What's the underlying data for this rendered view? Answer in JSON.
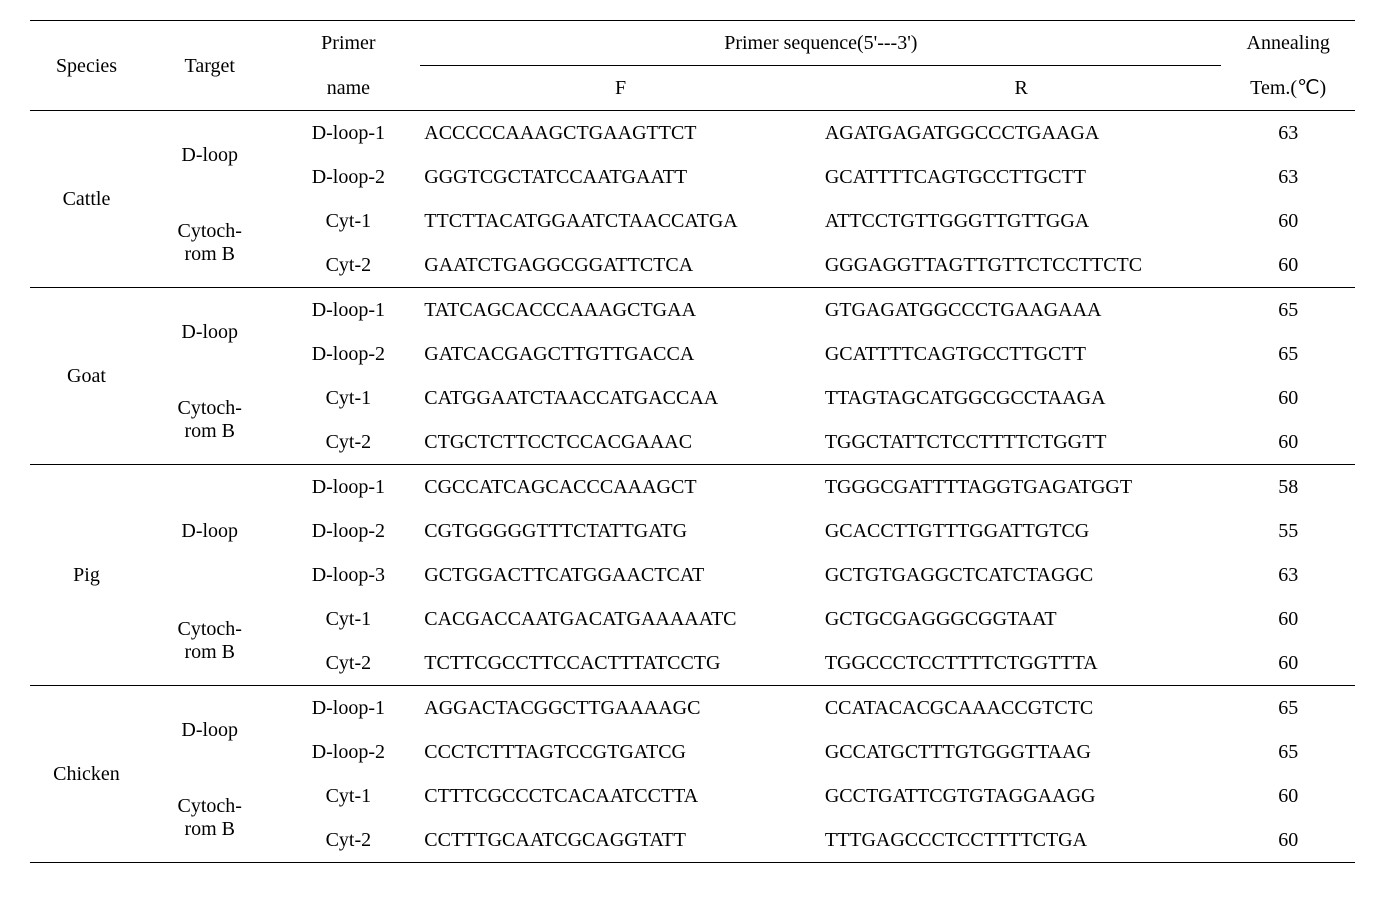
{
  "headers": {
    "species": "Species",
    "target": "Target",
    "primer_name_top": "Primer",
    "primer_name_bottom": "name",
    "sequence": "Primer  sequence(5'---3')",
    "f": "F",
    "r": "R",
    "annealing_top": "Annealing",
    "annealing_bottom": "Tem.(℃)"
  },
  "species": [
    {
      "name": "Cattle",
      "targets": [
        {
          "name": "D-loop",
          "rows": [
            {
              "primer": "D-loop-1",
              "f": "ACCCCCAAAGCTGAAGTTCT",
              "r": "AGATGAGATGGCCCTGAAGA",
              "temp": "63"
            },
            {
              "primer": "D-loop-2",
              "f": "GGGTCGCTATCCAATGAATT",
              "r": "GCATTTTCAGTGCCTTGCTT",
              "temp": "63"
            }
          ]
        },
        {
          "name": "Cytoch-\nrom  B",
          "rows": [
            {
              "primer": "Cyt-1",
              "f": "TTCTTACATGGAATCTAACCATGA",
              "r": "ATTCCTGTTGGGTTGTTGGA",
              "temp": "60"
            },
            {
              "primer": "Cyt-2",
              "f": "GAATCTGAGGCGGATTCTCA",
              "r": "GGGAGGTTAGTTGTTCTCCTTCTC",
              "temp": "60"
            }
          ]
        }
      ]
    },
    {
      "name": "Goat",
      "targets": [
        {
          "name": "D-loop",
          "rows": [
            {
              "primer": "D-loop-1",
              "f": "TATCAGCACCCAAAGCTGAA",
              "r": "GTGAGATGGCCCTGAAGAAA",
              "temp": "65"
            },
            {
              "primer": "D-loop-2",
              "f": "GATCACGAGCTTGTTGACCA",
              "r": "GCATTTTCAGTGCCTTGCTT",
              "temp": "65"
            }
          ]
        },
        {
          "name": "Cytoch-\nrom  B",
          "rows": [
            {
              "primer": "Cyt-1",
              "f": "CATGGAATCTAACCATGACCAA",
              "r": "TTAGTAGCATGGCGCCTAAGA",
              "temp": "60"
            },
            {
              "primer": "Cyt-2",
              "f": "CTGCTCTTCCTCCACGAAAC",
              "r": "TGGCTATTCTCCTTTTCTGGTT",
              "temp": "60"
            }
          ]
        }
      ]
    },
    {
      "name": "Pig",
      "targets": [
        {
          "name": "D-loop",
          "rows": [
            {
              "primer": "D-loop-1",
              "f": "CGCCATCAGCACCCAAAGCT",
              "r": "TGGGCGATTTTAGGTGAGATGGT",
              "temp": "58"
            },
            {
              "primer": "D-loop-2",
              "f": "CGTGGGGGTTTCTATTGATG",
              "r": "GCACCTTGTTTGGATTGTCG",
              "temp": "55"
            },
            {
              "primer": "D-loop-3",
              "f": "GCTGGACTTCATGGAACTCAT",
              "r": "GCTGTGAGGCTCATCTAGGC",
              "temp": "63"
            }
          ]
        },
        {
          "name": "Cytoch-\nrom  B",
          "rows": [
            {
              "primer": "Cyt-1",
              "f": "CACGACCAATGACATGAAAAATC",
              "r": "GCTGCGAGGGCGGTAAT",
              "temp": "60"
            },
            {
              "primer": "Cyt-2",
              "f": "TCTTCGCCTTCCACTTTATCCTG",
              "r": "TGGCCCTCCTTTTCTGGTTTA",
              "temp": "60"
            }
          ]
        }
      ]
    },
    {
      "name": "Chicken",
      "targets": [
        {
          "name": "D-loop",
          "rows": [
            {
              "primer": "D-loop-1",
              "f": "AGGACTACGGCTTGAAAAGC",
              "r": "CCATACACGCAAACCGTCTC",
              "temp": "65"
            },
            {
              "primer": "D-loop-2",
              "f": "CCCTCTTTAGTCCGTGATCG",
              "r": "GCCATGCTTTGTGGGTTAAG",
              "temp": "65"
            }
          ]
        },
        {
          "name": "Cytoch-\nrom  B",
          "rows": [
            {
              "primer": "Cyt-1",
              "f": "CTTTCGCCCTCACAATCCTTA",
              "r": "GCCTGATTCGTGTAGGAAGG",
              "temp": "60"
            },
            {
              "primer": "Cyt-2",
              "f": "CCTTTGCAATCGCAGGTATT",
              "r": "TTTGAGCCCTCCTTTTCTGA",
              "temp": "60"
            }
          ]
        }
      ]
    }
  ]
}
